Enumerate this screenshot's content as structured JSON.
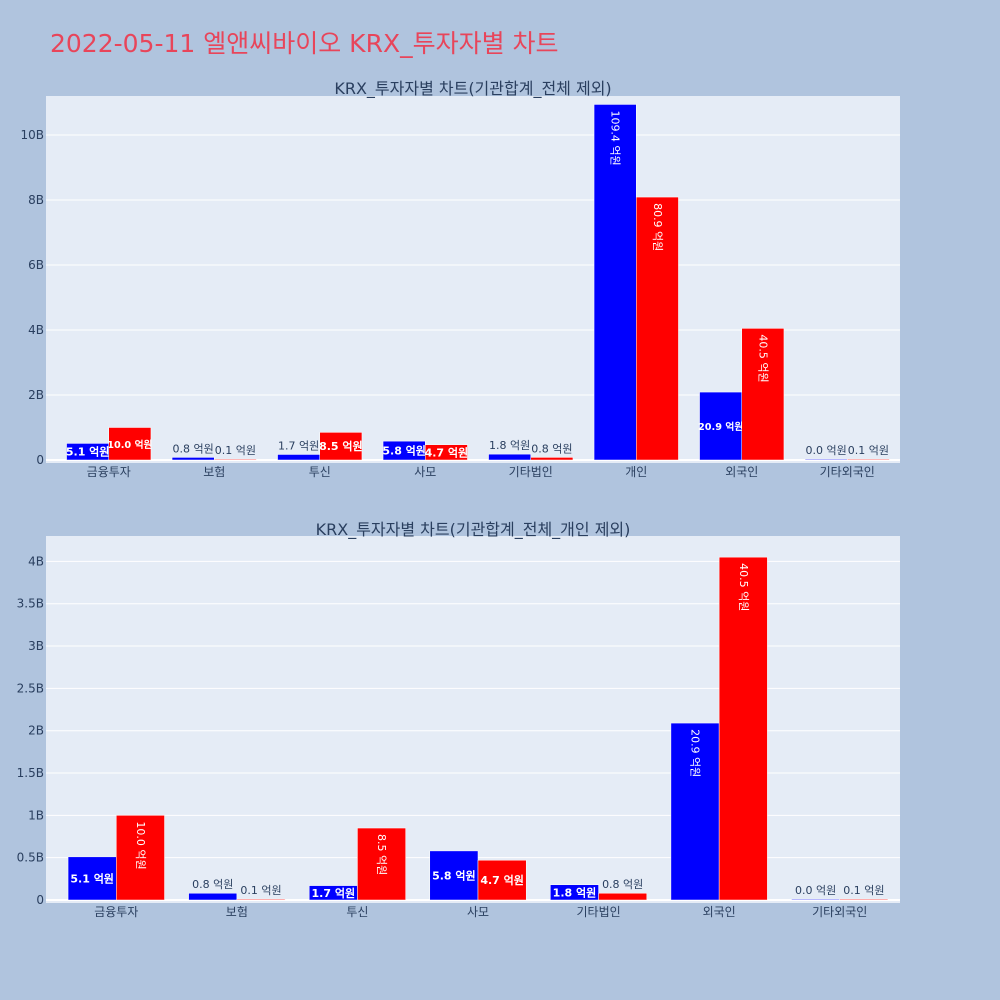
{
  "page_title": "2022-05-11 엘앤씨바이오 KRX_투자자별 차트",
  "colors": {
    "background": "#b0c4de",
    "plot_bg": "#e5ecf6",
    "title": "#e8455a",
    "series_a": "#0000ff",
    "series_b": "#ff0000"
  },
  "chart_data": [
    {
      "type": "bar",
      "title": "KRX_투자자별 차트(기관합계_전체 제외)",
      "categories": [
        "금융투자",
        "보험",
        "투신",
        "사모",
        "기타법인",
        "개인",
        "외국인",
        "기타외국인"
      ],
      "series": [
        {
          "color": "#0000ff",
          "values": [
            0.51,
            0.08,
            0.17,
            0.58,
            0.18,
            10.94,
            2.09,
            0.0
          ],
          "labels": [
            "5.1 억원",
            "0.8 억원",
            "1.7 억원",
            "5.8 억원",
            "1.8 억원",
            "109.4 억원",
            "20.9 억원",
            "0.0 억원"
          ]
        },
        {
          "color": "#ff0000",
          "values": [
            1.0,
            0.01,
            0.85,
            0.47,
            0.08,
            8.09,
            4.05,
            0.01
          ],
          "labels": [
            "10.0 억원",
            "0.1 억원",
            "8.5 억원",
            "4.7 억원",
            "0.8 억원",
            "80.9 억원",
            "40.5 억원",
            "0.1 억원"
          ]
        }
      ],
      "ylim": [
        0,
        11.2
      ],
      "yticks": [
        0,
        2,
        4,
        6,
        8,
        10
      ],
      "ytick_labels": [
        "0",
        "2B",
        "4B",
        "6B",
        "8B",
        "10B"
      ],
      "grid": true
    },
    {
      "type": "bar",
      "title": "KRX_투자자별 차트(기관합계_전체_개인 제외)",
      "categories": [
        "금융투자",
        "보험",
        "투신",
        "사모",
        "기타법인",
        "외국인",
        "기타외국인"
      ],
      "series": [
        {
          "color": "#0000ff",
          "values": [
            0.51,
            0.08,
            0.17,
            0.58,
            0.18,
            2.09,
            0.0
          ],
          "labels": [
            "5.1 억원",
            "0.8 억원",
            "1.7 억원",
            "5.8 억원",
            "1.8 억원",
            "20.9 억원",
            "0.0 억원"
          ]
        },
        {
          "color": "#ff0000",
          "values": [
            1.0,
            0.01,
            0.85,
            0.47,
            0.08,
            4.05,
            0.01
          ],
          "labels": [
            "10.0 억원",
            "0.1 억원",
            "8.5 억원",
            "4.7 억원",
            "0.8 억원",
            "40.5 억원",
            "0.1 억원"
          ]
        }
      ],
      "ylim": [
        0,
        4.3
      ],
      "yticks": [
        0,
        0.5,
        1,
        1.5,
        2,
        2.5,
        3,
        3.5,
        4
      ],
      "ytick_labels": [
        "0",
        "0.5B",
        "1B",
        "1.5B",
        "2B",
        "2.5B",
        "3B",
        "3.5B",
        "4B"
      ],
      "grid": true
    }
  ]
}
